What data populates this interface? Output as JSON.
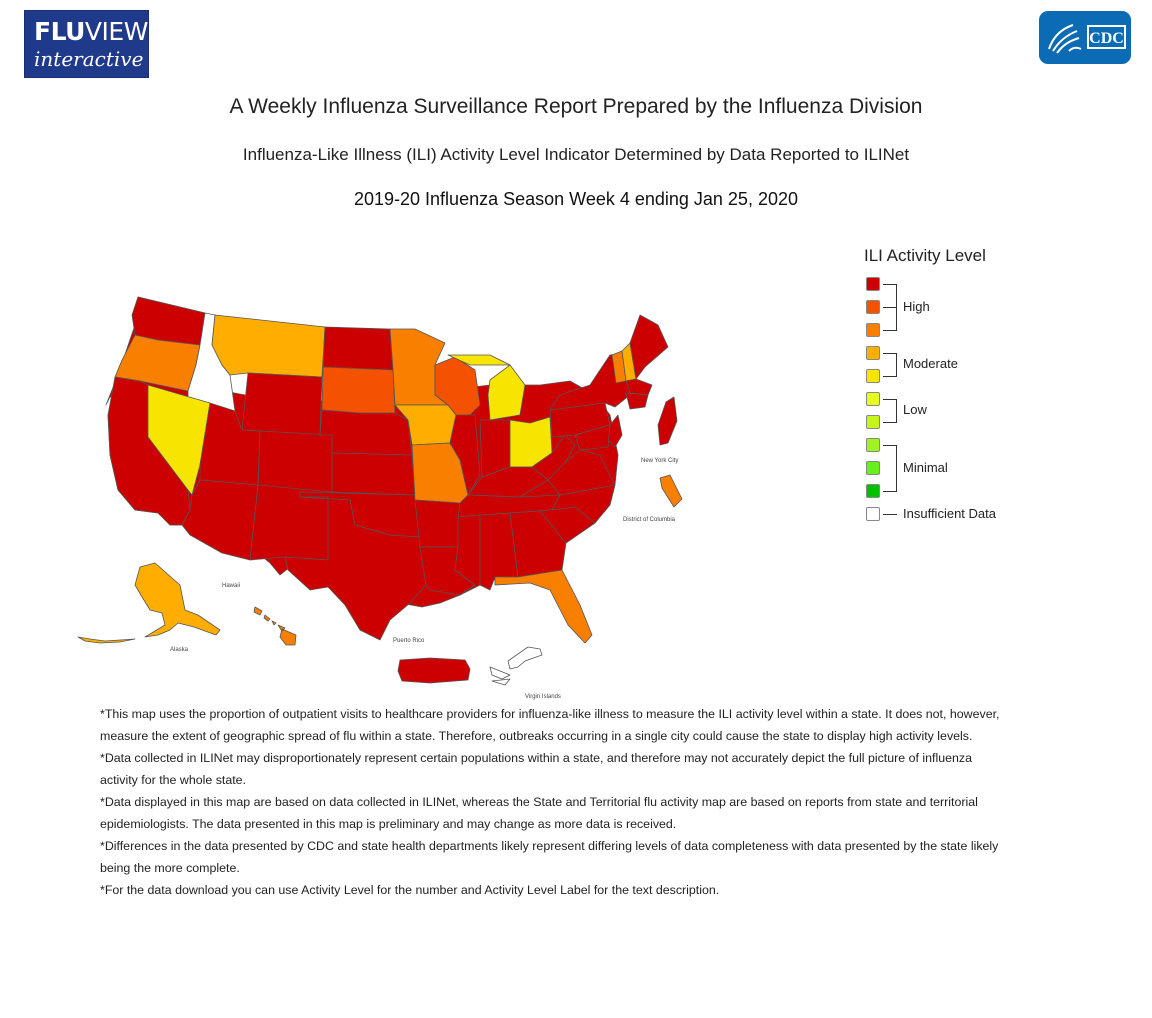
{
  "header": {
    "logo_fluview": {
      "line1_bold": "FLU",
      "line1_rest": "VIEW",
      "line2": "interactive"
    },
    "logo_cdc": "CDC"
  },
  "titles": {
    "main": "A Weekly Influenza Surveillance Report Prepared by the Influenza Division",
    "sub": "Influenza-Like Illness (ILI) Activity Level Indicator Determined by Data Reported to ILINet",
    "week": "2019-20 Influenza Season Week 4 ending Jan 25, 2020"
  },
  "legend": {
    "title": "ILI Activity Level",
    "swatches": [
      {
        "level": 10,
        "color": "#cc0000"
      },
      {
        "level": 9,
        "color": "#f55200"
      },
      {
        "level": 8,
        "color": "#f97f00"
      },
      {
        "level": 7,
        "color": "#ffae00"
      },
      {
        "level": 6,
        "color": "#f7e400"
      },
      {
        "level": 5,
        "color": "#e6ff20"
      },
      {
        "level": 4,
        "color": "#c6f51b"
      },
      {
        "level": 3,
        "color": "#9ff520"
      },
      {
        "level": 2,
        "color": "#66f01c"
      },
      {
        "level": 1,
        "color": "#00c000"
      },
      {
        "level": 0,
        "color": "#ffffff"
      }
    ],
    "groups": {
      "high": "High",
      "moderate": "Moderate",
      "low": "Low",
      "minimal": "Minimal",
      "insufficient": "Insufficient Data"
    }
  },
  "map": {
    "labels": {
      "nyc": "New York City",
      "dc": "District of Columbia",
      "hawaii": "Hawaii",
      "alaska": "Alaska",
      "puerto_rico": "Puerto Rico",
      "virgin_islands": "Virgin Islands"
    },
    "activity": {
      "WA": "High",
      "OR": "High (8)",
      "ID": "Insufficient Data",
      "MT": "Moderate (7)",
      "ND": "High",
      "WY": "High",
      "NV": "Moderate (6)",
      "CA": "High",
      "UT": "High",
      "CO": "High",
      "AZ": "High",
      "NM": "High",
      "SD": "High (9)",
      "NE": "High",
      "KS": "High",
      "OK": "High",
      "TX": "High",
      "MN": "High (8)",
      "IA": "Moderate (7)",
      "MO": "High (8)",
      "AR": "High",
      "LA": "High",
      "WI": "High (9)",
      "IL": "High",
      "MI": "Moderate (6)",
      "IN": "High",
      "OH": "Moderate (6)",
      "KY": "High",
      "TN": "High",
      "MS": "High",
      "AL": "High",
      "GA": "High",
      "FL": "High (8)",
      "SC": "High",
      "NC": "High",
      "VA": "High",
      "WV": "High",
      "PA": "High",
      "NY": "High",
      "ME": "High",
      "VT": "High (8)",
      "NH": "Moderate (7)",
      "MA": "High",
      "NYC": "High",
      "DC": "High (8)",
      "AK": "Moderate (7)",
      "HI": "High (8)",
      "PR": "High",
      "VI": "Insufficient Data"
    }
  },
  "notes": [
    "*This map uses the proportion of outpatient visits to healthcare providers for influenza-like illness to measure the ILI activity level within a state. It does not, however, measure the extent of geographic spread of flu within a state. Therefore, outbreaks occurring in a single city could cause the state to display high activity levels.",
    "*Data collected in ILINet may disproportionately represent certain populations within a state, and therefore may not accurately depict the full picture of influenza activity for the whole state.",
    "*Data displayed in this map are based on data collected in ILINet, whereas the State and Territorial flu activity map are based on reports from state and territorial epidemiologists. The data presented in this map is preliminary and may change as more data is received.",
    "*Differences in the data presented by CDC and state health departments likely represent differing levels of data completeness with data presented by the state likely being the more complete.",
    "*For the data download you can use Activity Level for the number and Activity Level Label for the text description."
  ]
}
